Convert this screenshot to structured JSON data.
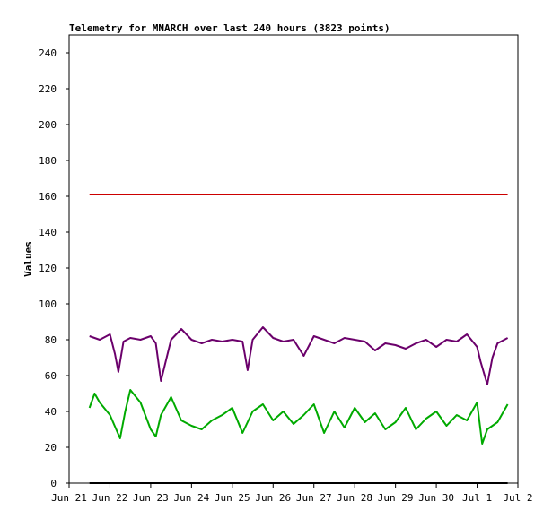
{
  "chart_data": {
    "type": "line",
    "title": "Telemetry for MNARCH over last 240 hours (3823 points)",
    "xlabel": "",
    "ylabel": "Values",
    "xlim": [
      "2024-06-21",
      "2024-07-02"
    ],
    "ylim": [
      0,
      250
    ],
    "x_tick_labels": [
      "Jun 21",
      "Jun 22",
      "Jun 23",
      "Jun 24",
      "Jun 25",
      "Jun 26",
      "Jun 27",
      "Jun 28",
      "Jun 29",
      "Jun 30",
      "Jul 1",
      "Jul 2"
    ],
    "y_tick_labels": [
      "0",
      "20",
      "40",
      "60",
      "80",
      "100",
      "120",
      "140",
      "160",
      "180",
      "200",
      "220",
      "240"
    ],
    "grid": false,
    "series": [
      {
        "color": "#cc0000",
        "x": [
          "2024-06-21T12:00",
          "2024-07-01T18:00"
        ],
        "y": [
          161,
          161
        ]
      },
      {
        "color": "#6b006b",
        "x": [
          "2024-06-21T12:00",
          "2024-06-21T18:00",
          "2024-06-22T00:00",
          "2024-06-22T03:00",
          "2024-06-22T05:00",
          "2024-06-22T08:00",
          "2024-06-22T12:00",
          "2024-06-22T18:00",
          "2024-06-23T00:00",
          "2024-06-23T03:00",
          "2024-06-23T06:00",
          "2024-06-23T12:00",
          "2024-06-23T18:00",
          "2024-06-24T00:00",
          "2024-06-24T06:00",
          "2024-06-24T12:00",
          "2024-06-24T18:00",
          "2024-06-25T00:00",
          "2024-06-25T06:00",
          "2024-06-25T09:00",
          "2024-06-25T12:00",
          "2024-06-25T18:00",
          "2024-06-26T00:00",
          "2024-06-26T06:00",
          "2024-06-26T12:00",
          "2024-06-26T18:00",
          "2024-06-27T00:00",
          "2024-06-27T06:00",
          "2024-06-27T12:00",
          "2024-06-27T18:00",
          "2024-06-28T00:00",
          "2024-06-28T06:00",
          "2024-06-28T12:00",
          "2024-06-28T18:00",
          "2024-06-29T00:00",
          "2024-06-29T06:00",
          "2024-06-29T12:00",
          "2024-06-29T18:00",
          "2024-06-30T00:00",
          "2024-06-30T06:00",
          "2024-06-30T12:00",
          "2024-06-30T18:00",
          "2024-07-01T00:00",
          "2024-07-01T02:00",
          "2024-07-01T06:00",
          "2024-07-01T09:00",
          "2024-07-01T12:00",
          "2024-07-01T18:00"
        ],
        "y": [
          82,
          80,
          83,
          72,
          62,
          79,
          81,
          80,
          82,
          78,
          57,
          80,
          86,
          80,
          78,
          80,
          79,
          80,
          79,
          63,
          80,
          87,
          81,
          79,
          80,
          71,
          82,
          80,
          78,
          81,
          80,
          79,
          74,
          78,
          77,
          75,
          78,
          80,
          76,
          80,
          79,
          83,
          76,
          68,
          55,
          70,
          78,
          81
        ]
      },
      {
        "color": "#00aa00",
        "x": [
          "2024-06-21T12:00",
          "2024-06-21T15:00",
          "2024-06-21T18:00",
          "2024-06-22T00:00",
          "2024-06-22T06:00",
          "2024-06-22T09:00",
          "2024-06-22T12:00",
          "2024-06-22T18:00",
          "2024-06-23T00:00",
          "2024-06-23T03:00",
          "2024-06-23T06:00",
          "2024-06-23T12:00",
          "2024-06-23T18:00",
          "2024-06-24T00:00",
          "2024-06-24T06:00",
          "2024-06-24T12:00",
          "2024-06-24T18:00",
          "2024-06-25T00:00",
          "2024-06-25T06:00",
          "2024-06-25T12:00",
          "2024-06-25T18:00",
          "2024-06-26T00:00",
          "2024-06-26T06:00",
          "2024-06-26T12:00",
          "2024-06-26T18:00",
          "2024-06-27T00:00",
          "2024-06-27T06:00",
          "2024-06-27T12:00",
          "2024-06-27T18:00",
          "2024-06-28T00:00",
          "2024-06-28T06:00",
          "2024-06-28T12:00",
          "2024-06-28T18:00",
          "2024-06-29T00:00",
          "2024-06-29T06:00",
          "2024-06-29T12:00",
          "2024-06-29T18:00",
          "2024-06-30T00:00",
          "2024-06-30T06:00",
          "2024-06-30T12:00",
          "2024-06-30T18:00",
          "2024-07-01T00:00",
          "2024-07-01T03:00",
          "2024-07-01T06:00",
          "2024-07-01T12:00",
          "2024-07-01T18:00"
        ],
        "y": [
          42,
          50,
          45,
          38,
          25,
          40,
          52,
          45,
          30,
          26,
          38,
          48,
          35,
          32,
          30,
          35,
          38,
          42,
          28,
          40,
          44,
          35,
          40,
          33,
          38,
          44,
          28,
          40,
          31,
          42,
          34,
          39,
          30,
          34,
          42,
          30,
          36,
          40,
          32,
          38,
          35,
          45,
          22,
          30,
          34,
          44
        ]
      },
      {
        "color": "#000000",
        "x": [
          "2024-06-21T12:00",
          "2024-07-01T18:00"
        ],
        "y": [
          0,
          0
        ]
      }
    ]
  }
}
